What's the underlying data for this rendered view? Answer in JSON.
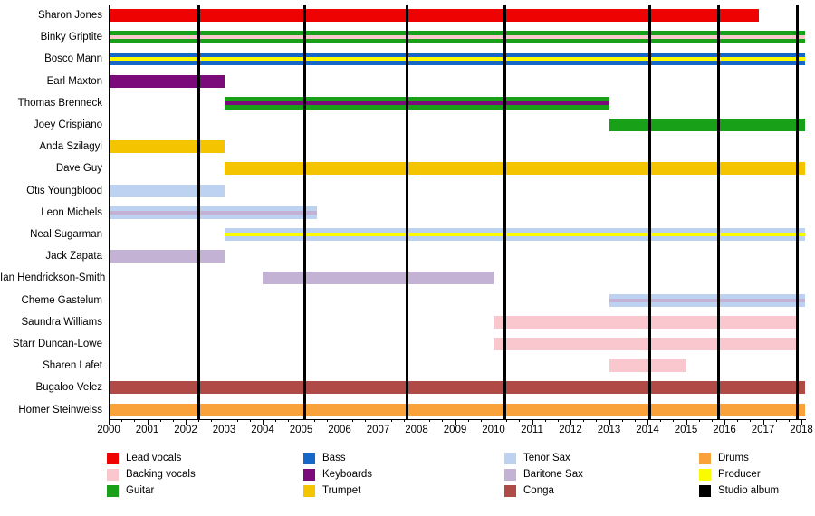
{
  "chart_data": {
    "type": "timeline",
    "description_visible_text_only": "band member tenure timeline, 2000-2018",
    "x_axis": {
      "min": 2000,
      "max": 2018,
      "year_step": 1,
      "tick_years": [
        2000,
        2001,
        2002,
        2003,
        2004,
        2005,
        2006,
        2007,
        2008,
        2009,
        2010,
        2011,
        2012,
        2013,
        2014,
        2015,
        2016,
        2017,
        2018
      ]
    },
    "role_colors": {
      "Lead vocals": "#ee0202",
      "Backing vocals": "#f9c7cd",
      "Guitar": "#18a018",
      "Bass": "#1668c8",
      "Keyboards": "#7b0b7b",
      "Trumpet": "#f5c400",
      "Tenor Sax": "#bcd2f0",
      "Baritone Sax": "#c4b2d4",
      "Conga": "#af4a47",
      "Drums": "#f9a13a",
      "Producer": "#fbfb00",
      "Studio album": "#000000"
    },
    "members": [
      {
        "name": "Sharon Jones",
        "start": 2000,
        "end": 2016.9,
        "roles": [
          "Lead vocals"
        ]
      },
      {
        "name": "Binky Griptite",
        "start": 2000,
        "end": 2018.1,
        "roles": [
          "Guitar",
          "Backing vocals"
        ]
      },
      {
        "name": "Bosco Mann",
        "start": 2000,
        "end": 2018.1,
        "roles": [
          "Bass",
          "Producer"
        ]
      },
      {
        "name": "Earl Maxton",
        "start": 2000,
        "end": 2003,
        "roles": [
          "Keyboards"
        ]
      },
      {
        "name": "Thomas Brenneck",
        "start": 2003,
        "end": 2013,
        "roles": [
          "Guitar",
          "Keyboards"
        ]
      },
      {
        "name": "Joey Crispiano",
        "start": 2013,
        "end": 2018.1,
        "roles": [
          "Guitar"
        ]
      },
      {
        "name": "Anda Szilagyi",
        "start": 2000,
        "end": 2003,
        "roles": [
          "Trumpet"
        ]
      },
      {
        "name": "Dave Guy",
        "start": 2003,
        "end": 2018.1,
        "roles": [
          "Trumpet"
        ]
      },
      {
        "name": "Otis Youngblood",
        "start": 2000,
        "end": 2003,
        "roles": [
          "Tenor Sax"
        ]
      },
      {
        "name": "Leon Michels",
        "start": 2000,
        "end": 2005.4,
        "roles": [
          "Tenor Sax",
          "Baritone Sax"
        ]
      },
      {
        "name": "Neal Sugarman",
        "start": 2003,
        "end": 2018.1,
        "roles": [
          "Tenor Sax",
          "Producer"
        ]
      },
      {
        "name": "Jack Zapata",
        "start": 2000,
        "end": 2003,
        "roles": [
          "Baritone Sax"
        ]
      },
      {
        "name": "Ian Hendrickson-Smith",
        "start": 2004,
        "end": 2010,
        "roles": [
          "Baritone Sax"
        ]
      },
      {
        "name": "Cheme Gastelum",
        "start": 2013,
        "end": 2018.1,
        "roles": [
          "Tenor Sax",
          "Baritone Sax"
        ]
      },
      {
        "name": "Saundra Williams",
        "start": 2010,
        "end": 2017.9,
        "roles": [
          "Backing vocals"
        ]
      },
      {
        "name": "Starr Duncan-Lowe",
        "start": 2010,
        "end": 2017.9,
        "roles": [
          "Backing vocals"
        ]
      },
      {
        "name": "Sharen Lafet",
        "start": 2013,
        "end": 2015,
        "roles": [
          "Backing vocals"
        ]
      },
      {
        "name": "Bugaloo Velez",
        "start": 2000,
        "end": 2018.1,
        "roles": [
          "Conga"
        ]
      },
      {
        "name": "Homer Steinweiss",
        "start": 2000,
        "end": 2018.1,
        "roles": [
          "Drums"
        ]
      }
    ],
    "albums": {
      "label": "Studio album",
      "years": [
        2002.35,
        2005.1,
        2007.75,
        2010.3,
        2014.05,
        2015.85,
        2017.9
      ]
    },
    "legend": {
      "columns": [
        [
          {
            "label": "Lead vocals",
            "color": "#ee0202"
          },
          {
            "label": "Backing vocals",
            "color": "#f9c7cd"
          },
          {
            "label": "Guitar",
            "color": "#18a018"
          }
        ],
        [
          {
            "label": "Bass",
            "color": "#1668c8"
          },
          {
            "label": "Keyboards",
            "color": "#7b0b7b"
          },
          {
            "label": "Trumpet",
            "color": "#f5c400"
          }
        ],
        [
          {
            "label": "Tenor Sax",
            "color": "#bcd2f0"
          },
          {
            "label": "Baritone Sax",
            "color": "#c4b2d4"
          },
          {
            "label": "Conga",
            "color": "#af4a47"
          }
        ],
        [
          {
            "label": "Drums",
            "color": "#f9a13a"
          },
          {
            "label": "Producer",
            "color": "#fbfb00"
          },
          {
            "label": "Studio album",
            "color": "#000000"
          }
        ]
      ]
    }
  }
}
